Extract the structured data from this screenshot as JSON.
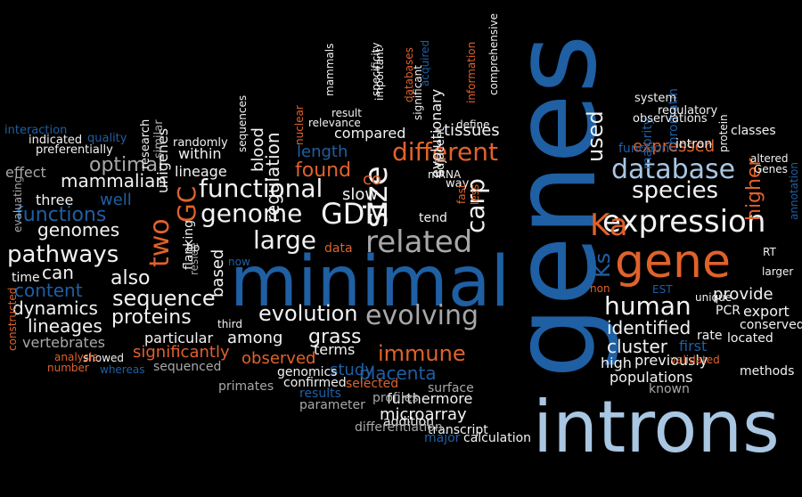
{
  "palette": {
    "background": "#000000",
    "blue": "#1f5fa3",
    "orange": "#e0622b",
    "white": "#f2f2f2",
    "gray": "#a8a8a8",
    "lightblue": "#a9c6e2"
  },
  "words": [
    {
      "text": "genes",
      "color": "blue"
    },
    {
      "text": "introns",
      "color": "lightblue"
    },
    {
      "text": "minimal",
      "color": "blue"
    },
    {
      "text": "gene",
      "color": "orange"
    },
    {
      "text": "expression",
      "color": "white"
    },
    {
      "text": "database",
      "color": "lightblue"
    },
    {
      "text": "related",
      "color": "gray"
    },
    {
      "text": "evolving",
      "color": "gray"
    },
    {
      "text": "GDM",
      "color": "white"
    },
    {
      "text": "size",
      "color": "white"
    },
    {
      "text": "Ka",
      "color": "orange"
    },
    {
      "text": "human",
      "color": "white"
    },
    {
      "text": "species",
      "color": "white"
    },
    {
      "text": "two",
      "color": "orange"
    },
    {
      "text": "genome",
      "color": "white"
    },
    {
      "text": "functional",
      "color": "white"
    },
    {
      "text": "large",
      "color": "white"
    },
    {
      "text": "different",
      "color": "orange"
    },
    {
      "text": "pathways",
      "color": "white"
    },
    {
      "text": "functions",
      "color": "blue"
    },
    {
      "text": "evolution",
      "color": "white"
    },
    {
      "text": "immune",
      "color": "orange"
    },
    {
      "text": "sequence",
      "color": "white"
    },
    {
      "text": "grass",
      "color": "white"
    },
    {
      "text": "proteins",
      "color": "white"
    },
    {
      "text": "content",
      "color": "blue"
    },
    {
      "text": "also",
      "color": "white"
    },
    {
      "text": "identified",
      "color": "white"
    },
    {
      "text": "cluster",
      "color": "white"
    },
    {
      "text": "used",
      "color": "white"
    },
    {
      "text": "provide",
      "color": "white"
    },
    {
      "text": "carp",
      "color": "white"
    },
    {
      "text": "GC",
      "color": "orange"
    },
    {
      "text": "Ks",
      "color": "blue"
    },
    {
      "text": "higher",
      "color": "orange"
    },
    {
      "text": "genomes",
      "color": "white"
    },
    {
      "text": "dynamics",
      "color": "white"
    },
    {
      "text": "found",
      "color": "orange"
    },
    {
      "text": "optimal",
      "color": "gray"
    },
    {
      "text": "placenta",
      "color": "blue"
    },
    {
      "text": "mammalian",
      "color": "white"
    },
    {
      "text": "regulation",
      "color": "white"
    },
    {
      "text": "lineages",
      "color": "white"
    },
    {
      "text": "significantly",
      "color": "orange"
    },
    {
      "text": "observed",
      "color": "orange"
    },
    {
      "text": "among",
      "color": "white"
    },
    {
      "text": "particular",
      "color": "white"
    },
    {
      "text": "vertebrates",
      "color": "gray"
    },
    {
      "text": "study",
      "color": "blue"
    },
    {
      "text": "can",
      "color": "white"
    },
    {
      "text": "length",
      "color": "blue"
    },
    {
      "text": "slow",
      "color": "white"
    },
    {
      "text": "well",
      "color": "blue"
    },
    {
      "text": "evolutionary",
      "color": "white"
    },
    {
      "text": "compared",
      "color": "white"
    },
    {
      "text": "expressed",
      "color": "orange"
    },
    {
      "text": "populations",
      "color": "white"
    },
    {
      "text": "based",
      "color": "white"
    },
    {
      "text": "blood",
      "color": "white"
    },
    {
      "text": "furthermore",
      "color": "white"
    },
    {
      "text": "microarray",
      "color": "white"
    },
    {
      "text": "first",
      "color": "blue"
    },
    {
      "text": "export",
      "color": "white"
    },
    {
      "text": "previously",
      "color": "white"
    },
    {
      "text": "high",
      "color": "white"
    },
    {
      "text": "tissues",
      "color": "white"
    },
    {
      "text": "effect",
      "color": "gray"
    },
    {
      "text": "three",
      "color": "white"
    },
    {
      "text": "lineage",
      "color": "white"
    },
    {
      "text": "within",
      "color": "white"
    },
    {
      "text": "unigenes",
      "color": "white"
    },
    {
      "text": "terms",
      "color": "white"
    },
    {
      "text": "co",
      "color": "orange"
    },
    {
      "text": "PCR",
      "color": "white"
    },
    {
      "text": "conserved",
      "color": "white"
    },
    {
      "text": "flanking",
      "color": "white"
    },
    {
      "text": "sequenced",
      "color": "gray"
    },
    {
      "text": "data",
      "color": "orange"
    },
    {
      "text": "time",
      "color": "white"
    },
    {
      "text": "tend",
      "color": "white"
    },
    {
      "text": "rate",
      "color": "white"
    },
    {
      "text": "located",
      "color": "white"
    },
    {
      "text": "known",
      "color": "gray"
    },
    {
      "text": "methods",
      "color": "white"
    },
    {
      "text": "surface",
      "color": "gray"
    },
    {
      "text": "addition",
      "color": "white"
    },
    {
      "text": "transcript",
      "color": "white"
    },
    {
      "text": "differentiation",
      "color": "gray"
    },
    {
      "text": "calculation",
      "color": "white"
    },
    {
      "text": "major",
      "color": "blue"
    },
    {
      "text": "parameter",
      "color": "gray"
    },
    {
      "text": "profiles",
      "color": "gray"
    },
    {
      "text": "genomics",
      "color": "white"
    },
    {
      "text": "confirmed",
      "color": "white"
    },
    {
      "text": "primates",
      "color": "gray"
    },
    {
      "text": "results",
      "color": "blue"
    },
    {
      "text": "selected",
      "color": "orange"
    },
    {
      "text": "showed",
      "color": "white"
    },
    {
      "text": "whereas",
      "color": "blue"
    },
    {
      "text": "number",
      "color": "orange"
    },
    {
      "text": "analysis",
      "color": "orange"
    },
    {
      "text": "constructed",
      "color": "orange"
    },
    {
      "text": "evaluating",
      "color": "gray"
    },
    {
      "text": "interaction",
      "color": "blue"
    },
    {
      "text": "indicated",
      "color": "white"
    },
    {
      "text": "quality",
      "color": "blue"
    },
    {
      "text": "preferentially",
      "color": "white"
    },
    {
      "text": "randomly",
      "color": "white"
    },
    {
      "text": "research",
      "color": "white"
    },
    {
      "text": "similar",
      "color": "gray"
    },
    {
      "text": "sequences",
      "color": "white"
    },
    {
      "text": "nuclear",
      "color": "orange"
    },
    {
      "text": "relevance",
      "color": "white"
    },
    {
      "text": "result",
      "color": "white"
    },
    {
      "text": "mammals",
      "color": "white"
    },
    {
      "text": "specificity",
      "color": "white"
    },
    {
      "text": "important",
      "color": "white"
    },
    {
      "text": "databases",
      "color": "orange"
    },
    {
      "text": "significant",
      "color": "white"
    },
    {
      "text": "acquired",
      "color": "blue"
    },
    {
      "text": "information",
      "color": "orange"
    },
    {
      "text": "comprehensive",
      "color": "white"
    },
    {
      "text": "define",
      "color": "white"
    },
    {
      "text": "adjacent",
      "color": "white"
    },
    {
      "text": "way",
      "color": "white"
    },
    {
      "text": "mRNA",
      "color": "white"
    },
    {
      "text": "fast",
      "color": "orange"
    },
    {
      "text": "less",
      "color": "orange"
    },
    {
      "text": "majority",
      "color": "blue"
    },
    {
      "text": "chromatin",
      "color": "blue"
    },
    {
      "text": "function",
      "color": "blue"
    },
    {
      "text": "intron",
      "color": "white"
    },
    {
      "text": "system",
      "color": "white"
    },
    {
      "text": "regulatory",
      "color": "white"
    },
    {
      "text": "observations",
      "color": "white"
    },
    {
      "text": "classes",
      "color": "white"
    },
    {
      "text": "protein",
      "color": "white"
    },
    {
      "text": "altered",
      "color": "white"
    },
    {
      "text": "Genes",
      "color": "white"
    },
    {
      "text": "annotation",
      "color": "blue"
    },
    {
      "text": "RT",
      "color": "white"
    },
    {
      "text": "larger",
      "color": "white"
    },
    {
      "text": "unique",
      "color": "white"
    },
    {
      "text": "validated",
      "color": "orange"
    },
    {
      "text": "EST",
      "color": "blue"
    },
    {
      "text": "non",
      "color": "orange"
    },
    {
      "text": "now",
      "color": "blue"
    },
    {
      "text": "reside",
      "color": "gray"
    },
    {
      "text": "bp",
      "color": "white"
    },
    {
      "text": "third",
      "color": "white"
    }
  ]
}
